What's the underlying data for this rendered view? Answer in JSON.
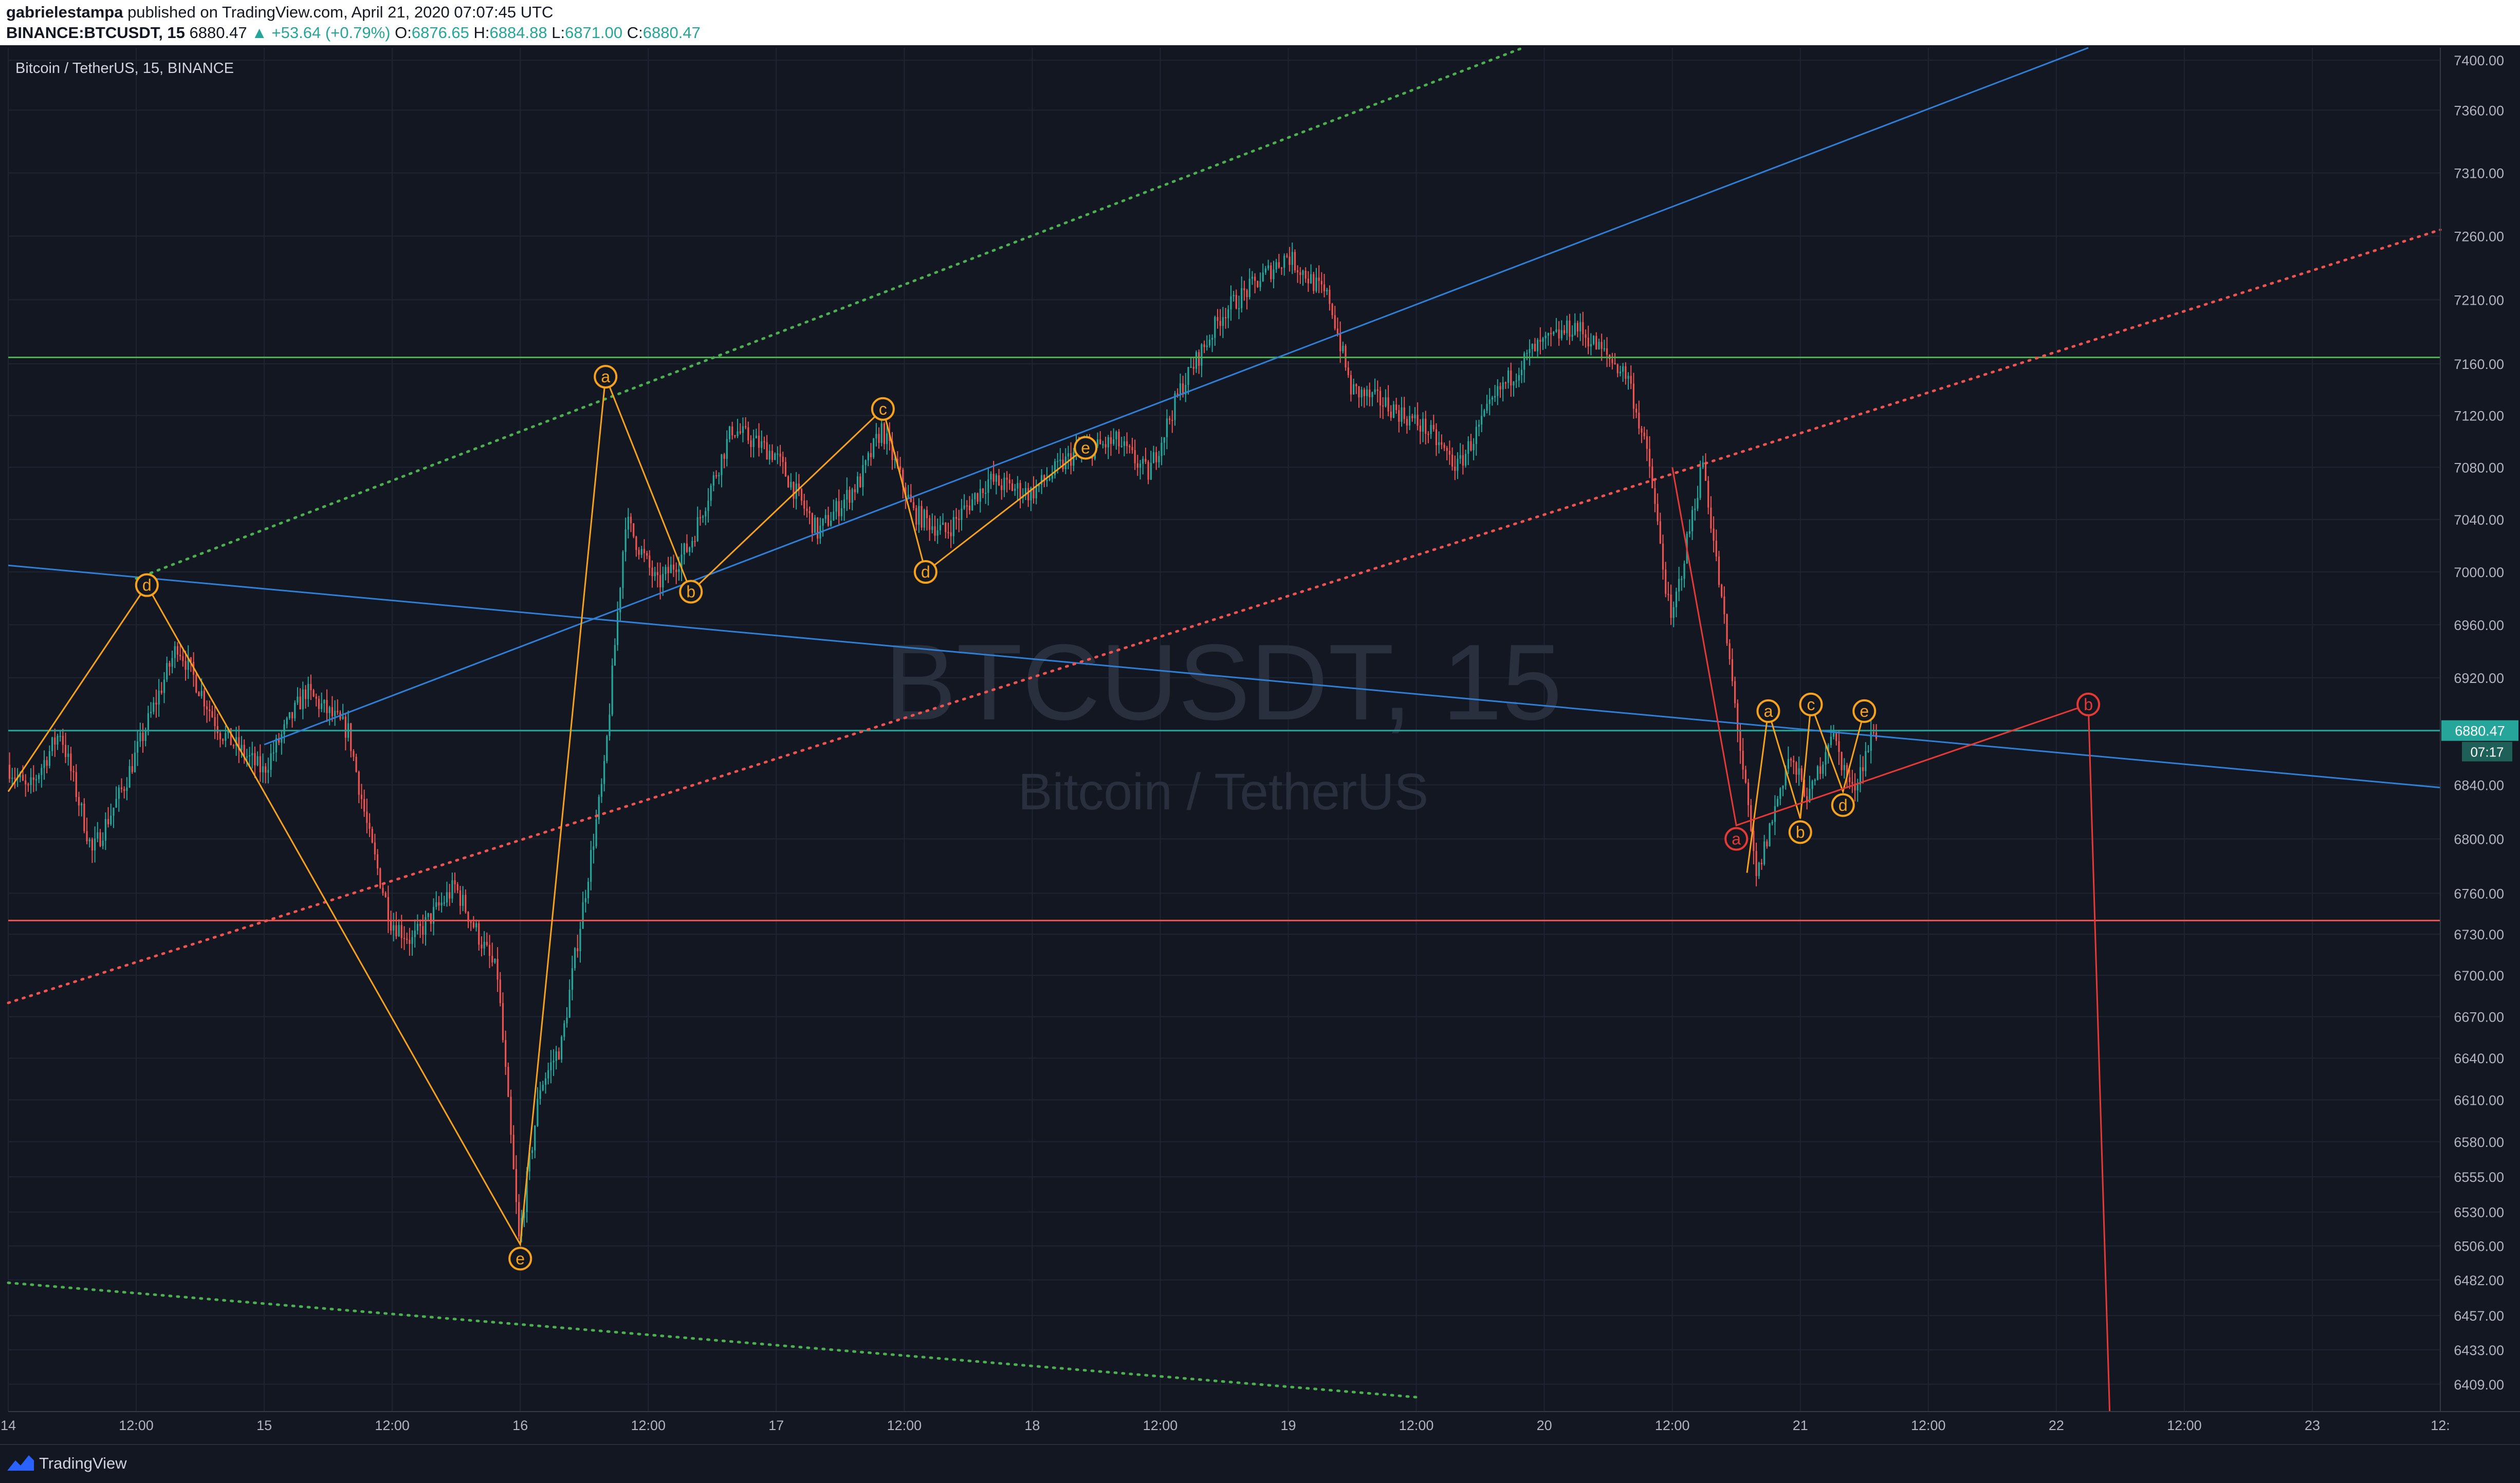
{
  "header": {
    "author": "gabrielestampa",
    "published_text": "published on TradingView.com, April 21, 2020 07:07:45 UTC",
    "symbol": "BINANCE:BTCUSDT, 15",
    "last": "6880.47",
    "change": "▲ +53.64 (+0.79%)",
    "o_label": "O:",
    "o_value": "6876.65",
    "h_label": "H:",
    "h_value": "6884.88",
    "l_label": "L:",
    "l_value": "6871.00",
    "c_label": "C:",
    "c_value": "6880.47"
  },
  "legend": {
    "title": "Bitcoin / TetherUS, 15, BINANCE"
  },
  "watermark": {
    "symbol": "BTCUSDT, 15",
    "name": "Bitcoin / TetherUS"
  },
  "price_tag": {
    "price": "6880.47",
    "countdown": "07:17"
  },
  "footer": {
    "brand": "TradingView"
  },
  "colors": {
    "background": "#131722",
    "grid": "#1f2433",
    "up": "#26a69a",
    "down": "#ef5350",
    "wave": "#f7a21b",
    "wave_red": "#e53935",
    "channel_blue": "#2f7fd6",
    "support_red": "#ef5350",
    "resistance_green": "#4caf50",
    "price_line": "#26a69a"
  },
  "chart_data": {
    "type": "candlestick",
    "interval": "15",
    "x_range": [
      "2020-04-14 00:00",
      "2020-04-23 12:00"
    ],
    "ylim": [
      6390,
      7410
    ],
    "y_scale": "log",
    "y_ticks": [
      7400,
      7360,
      7310,
      7260,
      7210,
      7160,
      7120,
      7080,
      7040,
      7000,
      6960,
      6920,
      6880,
      6840,
      6800,
      6760,
      6730,
      6700,
      6670,
      6640,
      6610,
      6580,
      6555,
      6530,
      6506,
      6482,
      6457,
      6433,
      6409
    ],
    "y_tick_labels": [
      "7400.00",
      "7360.00",
      "7310.00",
      "7260.00",
      "7210.00",
      "7160.00",
      "7120.00",
      "7080.00",
      "7040.00",
      "7000.00",
      "6960.00",
      "6920.00",
      "6880.00",
      "6840.00",
      "6800.00",
      "6760.00",
      "6730.00",
      "6700.00",
      "6670.00",
      "6640.00",
      "6610.00",
      "6580.00",
      "6555.00",
      "6530.00",
      "6506.00",
      "6482.00",
      "6457.00",
      "6433.00",
      "6409.00"
    ],
    "x_ticks": [
      {
        "t": "2020-04-14 00:00",
        "label": "14"
      },
      {
        "t": "2020-04-14 12:00",
        "label": "12:00"
      },
      {
        "t": "2020-04-15 00:00",
        "label": "15"
      },
      {
        "t": "2020-04-15 12:00",
        "label": "12:00"
      },
      {
        "t": "2020-04-16 00:00",
        "label": "16"
      },
      {
        "t": "2020-04-16 12:00",
        "label": "12:00"
      },
      {
        "t": "2020-04-17 00:00",
        "label": "17"
      },
      {
        "t": "2020-04-17 12:00",
        "label": "12:00"
      },
      {
        "t": "2020-04-18 00:00",
        "label": "18"
      },
      {
        "t": "2020-04-18 12:00",
        "label": "12:00"
      },
      {
        "t": "2020-04-19 00:00",
        "label": "19"
      },
      {
        "t": "2020-04-19 12:00",
        "label": "12:00"
      },
      {
        "t": "2020-04-20 00:00",
        "label": "20"
      },
      {
        "t": "2020-04-20 12:00",
        "label": "12:00"
      },
      {
        "t": "2020-04-21 00:00",
        "label": "21"
      },
      {
        "t": "2020-04-21 12:00",
        "label": "12:00"
      },
      {
        "t": "2020-04-22 00:00",
        "label": "22"
      },
      {
        "t": "2020-04-22 12:00",
        "label": "12:00"
      },
      {
        "t": "2020-04-23 00:00",
        "label": "23"
      },
      {
        "t": "2020-04-23 12:00",
        "label": "12:"
      }
    ],
    "price_path": [
      [
        "2020-04-14 00:00",
        6855
      ],
      [
        "2020-04-14 02:00",
        6835
      ],
      [
        "2020-04-14 05:00",
        6880
      ],
      [
        "2020-04-14 08:00",
        6790
      ],
      [
        "2020-04-14 11:00",
        6840
      ],
      [
        "2020-04-14 16:00",
        6945
      ],
      [
        "2020-04-14 20:00",
        6880
      ],
      [
        "2020-04-15 00:00",
        6850
      ],
      [
        "2020-04-15 04:00",
        6910
      ],
      [
        "2020-04-15 08:00",
        6880
      ],
      [
        "2020-04-15 10:00",
        6800
      ],
      [
        "2020-04-15 12:00",
        6740
      ],
      [
        "2020-04-15 14:00",
        6725
      ],
      [
        "2020-04-15 18:00",
        6765
      ],
      [
        "2020-04-15 22:00",
        6700
      ],
      [
        "2020-04-16 00:00",
        6510
      ],
      [
        "2020-04-16 02:00",
        6620
      ],
      [
        "2020-04-16 04:00",
        6650
      ],
      [
        "2020-04-16 08:00",
        6850
      ],
      [
        "2020-04-16 10:00",
        7040
      ],
      [
        "2020-04-16 13:00",
        6990
      ],
      [
        "2020-04-16 16:00",
        7020
      ],
      [
        "2020-04-16 20:00",
        7110
      ],
      [
        "2020-04-17 00:00",
        7090
      ],
      [
        "2020-04-17 04:00",
        7030
      ],
      [
        "2020-04-17 08:00",
        7070
      ],
      [
        "2020-04-17 10:00",
        7110
      ],
      [
        "2020-04-17 13:00",
        7045
      ],
      [
        "2020-04-17 16:00",
        7030
      ],
      [
        "2020-04-17 20:00",
        7070
      ],
      [
        "2020-04-18 00:00",
        7060
      ],
      [
        "2020-04-18 04:00",
        7090
      ],
      [
        "2020-04-18 08:00",
        7100
      ],
      [
        "2020-04-18 11:00",
        7075
      ],
      [
        "2020-04-18 14:00",
        7140
      ],
      [
        "2020-04-18 18:00",
        7200
      ],
      [
        "2020-04-19 00:00",
        7245
      ],
      [
        "2020-04-19 04:00",
        7210
      ],
      [
        "2020-04-19 06:00",
        7140
      ],
      [
        "2020-04-19 09:00",
        7130
      ],
      [
        "2020-04-19 13:00",
        7110
      ],
      [
        "2020-04-19 16:00",
        7080
      ],
      [
        "2020-04-19 20:00",
        7140
      ],
      [
        "2020-04-19 23:00",
        7170
      ],
      [
        "2020-04-20 03:00",
        7190
      ],
      [
        "2020-04-20 08:00",
        7150
      ],
      [
        "2020-04-20 10:00",
        7080
      ],
      [
        "2020-04-20 12:00",
        6960
      ],
      [
        "2020-04-20 15:00",
        7085
      ],
      [
        "2020-04-20 18:00",
        6900
      ],
      [
        "2020-04-20 20:00",
        6770
      ],
      [
        "2020-04-20 23:00",
        6860
      ],
      [
        "2020-04-21 01:00",
        6830
      ],
      [
        "2020-04-21 03:00",
        6880
      ],
      [
        "2020-04-21 05:00",
        6835
      ],
      [
        "2020-04-21 07:00",
        6880
      ]
    ],
    "horizontal_levels": [
      {
        "price": 7165,
        "color": "#4caf50",
        "style": "solid"
      },
      {
        "price": 6740,
        "color": "#ef5350",
        "style": "solid"
      },
      {
        "price": 6880.47,
        "color": "#26a69a",
        "style": "solid"
      }
    ],
    "trend_lines": [
      {
        "color": "#2f7fd6",
        "style": "solid",
        "points": [
          [
            "2020-04-14 00:00",
            7005
          ],
          [
            "2020-04-23 12:00",
            6838
          ]
        ]
      },
      {
        "color": "#2f7fd6",
        "style": "solid",
        "points": [
          [
            "2020-04-15 00:00",
            6870
          ],
          [
            "2020-04-22 03:00",
            7410
          ]
        ]
      },
      {
        "color": "#ef5350",
        "style": "dotted",
        "points": [
          [
            "2020-04-14 00:00",
            6680
          ],
          [
            "2020-04-23 12:00",
            7265
          ]
        ]
      },
      {
        "color": "#4caf50",
        "style": "dotted",
        "points": [
          [
            "2020-04-14 12:00",
            6995
          ],
          [
            "2020-04-19 22:00",
            7410
          ]
        ]
      },
      {
        "color": "#4caf50",
        "style": "dotted",
        "points": [
          [
            "2020-04-14 00:00",
            6480
          ],
          [
            "2020-04-19 12:00",
            6400
          ]
        ]
      }
    ],
    "wave_annotations": [
      {
        "label": "d",
        "color": "#f7a21b",
        "time": "2020-04-14 13:00",
        "price": 6990
      },
      {
        "label": "e",
        "color": "#f7a21b",
        "time": "2020-04-16 00:00",
        "price": 6497
      },
      {
        "label": "a",
        "color": "#f7a21b",
        "time": "2020-04-16 08:00",
        "price": 7150
      },
      {
        "label": "b",
        "color": "#f7a21b",
        "time": "2020-04-16 16:00",
        "price": 6985
      },
      {
        "label": "c",
        "color": "#f7a21b",
        "time": "2020-04-17 10:00",
        "price": 7125
      },
      {
        "label": "d",
        "color": "#f7a21b",
        "time": "2020-04-17 14:00",
        "price": 7000
      },
      {
        "label": "e",
        "color": "#f7a21b",
        "time": "2020-04-18 05:00",
        "price": 7095
      },
      {
        "label": "a",
        "color": "#e53935",
        "time": "2020-04-20 18:00",
        "price": 6800
      },
      {
        "label": "a",
        "color": "#f7a21b",
        "time": "2020-04-20 21:00",
        "price": 6895
      },
      {
        "label": "b",
        "color": "#f7a21b",
        "time": "2020-04-21 00:00",
        "price": 6805
      },
      {
        "label": "c",
        "color": "#f7a21b",
        "time": "2020-04-21 01:00",
        "price": 6900
      },
      {
        "label": "d",
        "color": "#f7a21b",
        "time": "2020-04-21 04:00",
        "price": 6825
      },
      {
        "label": "e",
        "color": "#f7a21b",
        "time": "2020-04-21 06:00",
        "price": 6895
      },
      {
        "label": "b",
        "color": "#e53935",
        "time": "2020-04-22 03:00",
        "price": 6900
      }
    ],
    "wave_paths": [
      {
        "color": "#f7a21b",
        "points": [
          [
            "2020-04-14 00:00",
            6835
          ],
          [
            "2020-04-14 13:00",
            6990
          ],
          [
            "2020-04-16 00:00",
            6507
          ],
          [
            "2020-04-16 08:00",
            7150
          ],
          [
            "2020-04-16 16:00",
            6985
          ],
          [
            "2020-04-17 10:00",
            7125
          ],
          [
            "2020-04-17 14:00",
            7000
          ],
          [
            "2020-04-18 05:00",
            7095
          ]
        ]
      },
      {
        "color": "#f7a21b",
        "points": [
          [
            "2020-04-20 19:00",
            6775
          ],
          [
            "2020-04-20 21:00",
            6895
          ],
          [
            "2020-04-21 00:00",
            6815
          ],
          [
            "2020-04-21 01:00",
            6900
          ],
          [
            "2020-04-21 04:00",
            6835
          ],
          [
            "2020-04-21 06:00",
            6895
          ]
        ]
      },
      {
        "color": "#e53935",
        "points": [
          [
            "2020-04-20 12:00",
            7080
          ],
          [
            "2020-04-20 18:00",
            6810
          ],
          [
            "2020-04-22 03:00",
            6900
          ],
          [
            "2020-04-22 05:00",
            6390
          ]
        ]
      }
    ]
  }
}
